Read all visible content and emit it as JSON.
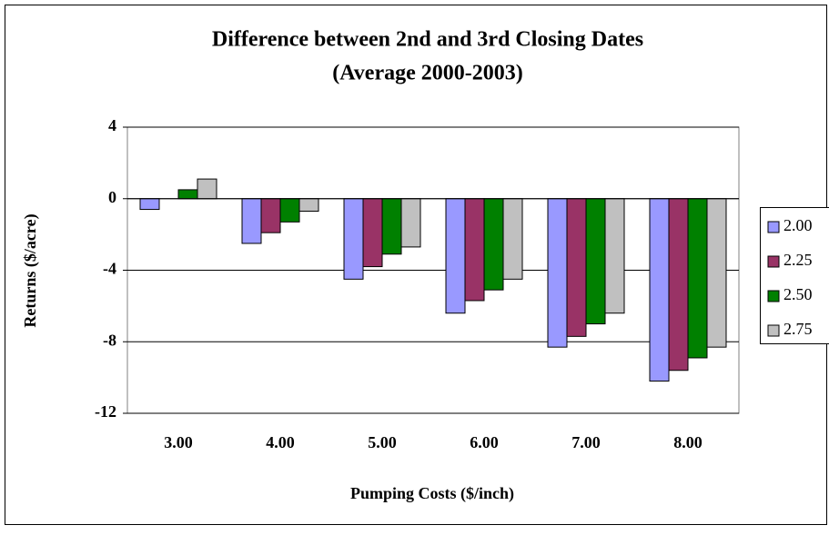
{
  "chart_data": {
    "type": "bar",
    "title": "Difference between 2nd and 3rd Closing Dates",
    "subtitle": "(Average 2000-2003)",
    "x_label": "Pumping Costs ($/inch)",
    "y_label": "Returns ($/acre)",
    "categories": [
      "3.00",
      "4.00",
      "5.00",
      "6.00",
      "7.00",
      "8.00"
    ],
    "series": [
      {
        "name": "2.00",
        "color": "#9999ff",
        "values": [
          -0.6,
          -2.5,
          -4.5,
          -6.4,
          -8.3,
          -10.2
        ]
      },
      {
        "name": "2.25",
        "color": "#993366",
        "values": [
          0,
          -1.9,
          -3.8,
          -5.7,
          -7.7,
          -9.6
        ]
      },
      {
        "name": "2.50",
        "color": "#008000",
        "values": [
          0.5,
          -1.3,
          -3.1,
          -5.1,
          -7.0,
          -8.9
        ]
      },
      {
        "name": "2.75",
        "color": "#c0c0c0",
        "values": [
          1.1,
          -0.7,
          -2.7,
          -4.5,
          -6.4,
          -8.3
        ]
      }
    ],
    "ylim": [
      -12,
      4
    ],
    "yticks": [
      4,
      0,
      -4,
      -8,
      -12
    ],
    "grid": true,
    "legend": "right"
  }
}
